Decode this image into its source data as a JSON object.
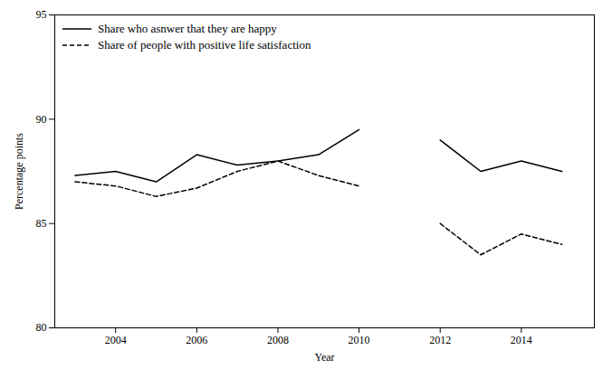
{
  "chart_data": {
    "type": "line",
    "x": [
      2003,
      2004,
      2005,
      2006,
      2007,
      2008,
      2009,
      2010,
      2011,
      2012,
      2013,
      2014,
      2015
    ],
    "series": [
      {
        "name": "Share who asnwer that they are happy",
        "color": "black",
        "line_style": "solid",
        "values": [
          87.3,
          87.5,
          87.0,
          88.3,
          87.8,
          88.0,
          88.3,
          89.5,
          null,
          89.0,
          87.5,
          88.0,
          87.5
        ]
      },
      {
        "name": "Share of people with positive life satisfaction",
        "color": "black",
        "line_style": "dashed",
        "values": [
          87.0,
          86.8,
          86.3,
          86.7,
          87.5,
          88.0,
          87.3,
          86.8,
          null,
          85.0,
          83.5,
          84.5,
          84.0
        ]
      }
    ],
    "xlabel": "Year",
    "ylabel": "Percentage points",
    "xlim": [
      2002.5,
      2015.8
    ],
    "ylim": [
      80,
      95
    ],
    "xticks": [
      2004,
      2006,
      2008,
      2010,
      2012,
      2014
    ],
    "yticks": [
      80,
      85,
      90,
      95
    ],
    "legend": "upper left"
  }
}
